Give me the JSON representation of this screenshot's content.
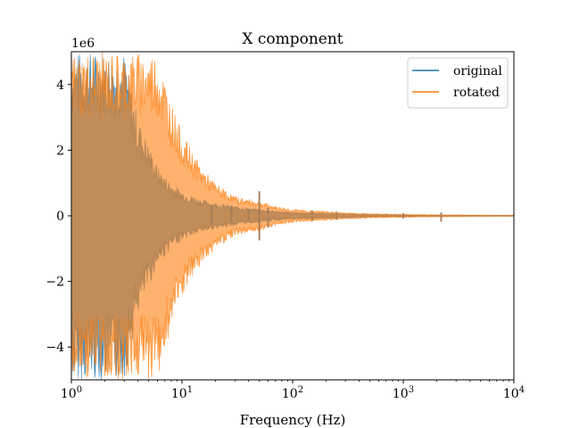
{
  "chart_data": {
    "type": "area",
    "title": "X component",
    "xlabel": "Frequency (Hz)",
    "ylabel": "",
    "x_scale": "log",
    "xlim": [
      1,
      10000
    ],
    "ylim": [
      -5000000,
      5000000
    ],
    "y_offset_label": "1e6",
    "x_ticks": [
      {
        "value": 1,
        "base": "10",
        "exp": "0"
      },
      {
        "value": 10,
        "base": "10",
        "exp": "1"
      },
      {
        "value": 100,
        "base": "10",
        "exp": "2"
      },
      {
        "value": 1000,
        "base": "10",
        "exp": "3"
      },
      {
        "value": 10000,
        "base": "10",
        "exp": "4"
      }
    ],
    "y_ticks": [
      {
        "value": 4000000,
        "label": "4"
      },
      {
        "value": 2000000,
        "label": "2"
      },
      {
        "value": 0,
        "label": "0"
      },
      {
        "value": -2000000,
        "label": "−2"
      },
      {
        "value": -4000000,
        "label": "−4"
      }
    ],
    "legend_position": "top-right",
    "series": [
      {
        "name": "original",
        "color": "#1f77b4",
        "x": [
          1,
          2,
          3,
          4,
          5,
          6,
          8,
          10,
          15,
          20,
          30,
          50,
          70,
          100,
          200,
          300,
          500,
          1000,
          2000,
          5000,
          10000
        ],
        "envelope": [
          5000000,
          5000000,
          5000000,
          3000000,
          2200000,
          1500000,
          1000000,
          750000,
          500000,
          400000,
          300000,
          200000,
          150000,
          110000,
          80000,
          60000,
          40000,
          30000,
          20000,
          15000,
          10000
        ]
      },
      {
        "name": "rotated",
        "color": "#ff7f0e",
        "x": [
          1,
          2,
          3,
          4,
          5,
          6,
          8,
          10,
          15,
          20,
          30,
          50,
          70,
          100,
          200,
          300,
          500,
          1000,
          2000,
          5000,
          10000
        ],
        "envelope": [
          5000000,
          5000000,
          5000000,
          5000000,
          5000000,
          5000000,
          3500000,
          2500000,
          1500000,
          1000000,
          600000,
          450000,
          300000,
          200000,
          140000,
          100000,
          70000,
          50000,
          35000,
          25000,
          20000
        ]
      }
    ],
    "spikes": [
      {
        "x": 18.5,
        "top": 300000,
        "bottom": -250000
      },
      {
        "x": 28,
        "top": 300000,
        "bottom": -200000
      },
      {
        "x": 40,
        "top": 200000,
        "bottom": -150000
      },
      {
        "x": 50,
        "top": 750000,
        "bottom": -750000
      },
      {
        "x": 60,
        "top": 250000,
        "bottom": -350000
      },
      {
        "x": 150,
        "top": 150000,
        "bottom": -150000
      },
      {
        "x": 250,
        "top": 120000,
        "bottom": -120000
      },
      {
        "x": 1000,
        "top": 80000,
        "bottom": -80000
      },
      {
        "x": 2200,
        "top": 100000,
        "bottom": -180000
      }
    ]
  }
}
